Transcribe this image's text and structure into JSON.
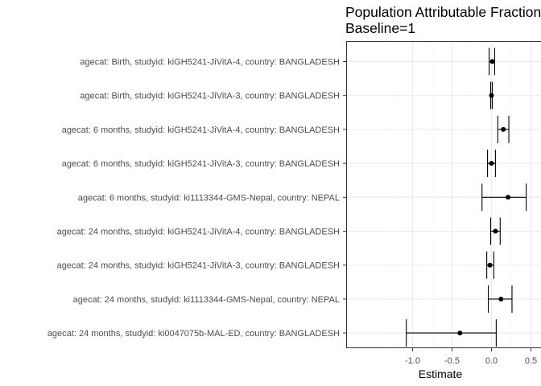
{
  "chart_data": {
    "type": "forest",
    "title": "Population Attributable Fraction",
    "subtitle": "Baseline=1",
    "xlabel": "Estimate",
    "ylabel": "",
    "xlim": [
      -1.13,
      0.5
    ],
    "x_ticks": [
      -1.0,
      -0.5,
      0.0,
      0.5
    ],
    "x_tick_labels": [
      "-1.0",
      "-0.5",
      "0.0",
      "0.5"
    ],
    "grid": true,
    "colors": {
      "panel_border": "#333333",
      "grid_major": "#ebebeb",
      "grid_minor": "#f5f5f5",
      "point": "#000000"
    },
    "rows": [
      {
        "label": "agecat: Birth, studyid: kiGH5241-JiVitA-4, country: BANGLADESH",
        "estimate": 0.01,
        "lower": -0.03,
        "upper": 0.04
      },
      {
        "label": "agecat: Birth, studyid: kiGH5241-JiVitA-3, country: BANGLADESH",
        "estimate": 0.0,
        "lower": -0.01,
        "upper": 0.01
      },
      {
        "label": "agecat: 6 months, studyid: kiGH5241-JiVitA-4, country: BANGLADESH",
        "estimate": 0.15,
        "lower": 0.08,
        "upper": 0.22
      },
      {
        "label": "agecat: 6 months, studyid: kiGH5241-JiVitA-3, country: BANGLADESH",
        "estimate": 0.0,
        "lower": -0.05,
        "upper": 0.05
      },
      {
        "label": "agecat: 6 months, studyid: ki1113344-GMS-Nepal, country: NEPAL",
        "estimate": 0.21,
        "lower": -0.12,
        "upper": 0.44
      },
      {
        "label": "agecat: 24 months, studyid: kiGH5241-JiVitA-4, country: BANGLADESH",
        "estimate": 0.05,
        "lower": -0.01,
        "upper": 0.11
      },
      {
        "label": "agecat: 24 months, studyid: kiGH5241-JiVitA-3, country: BANGLADESH",
        "estimate": -0.02,
        "lower": -0.06,
        "upper": 0.03
      },
      {
        "label": "agecat: 24 months, studyid: ki1113344-GMS-Nepal, country: NEPAL",
        "estimate": 0.12,
        "lower": -0.04,
        "upper": 0.26
      },
      {
        "label": "agecat: 24 months, studyid: ki0047075b-MAL-ED, country: BANGLADESH",
        "estimate": -0.4,
        "lower": -1.08,
        "upper": 0.06
      }
    ]
  }
}
